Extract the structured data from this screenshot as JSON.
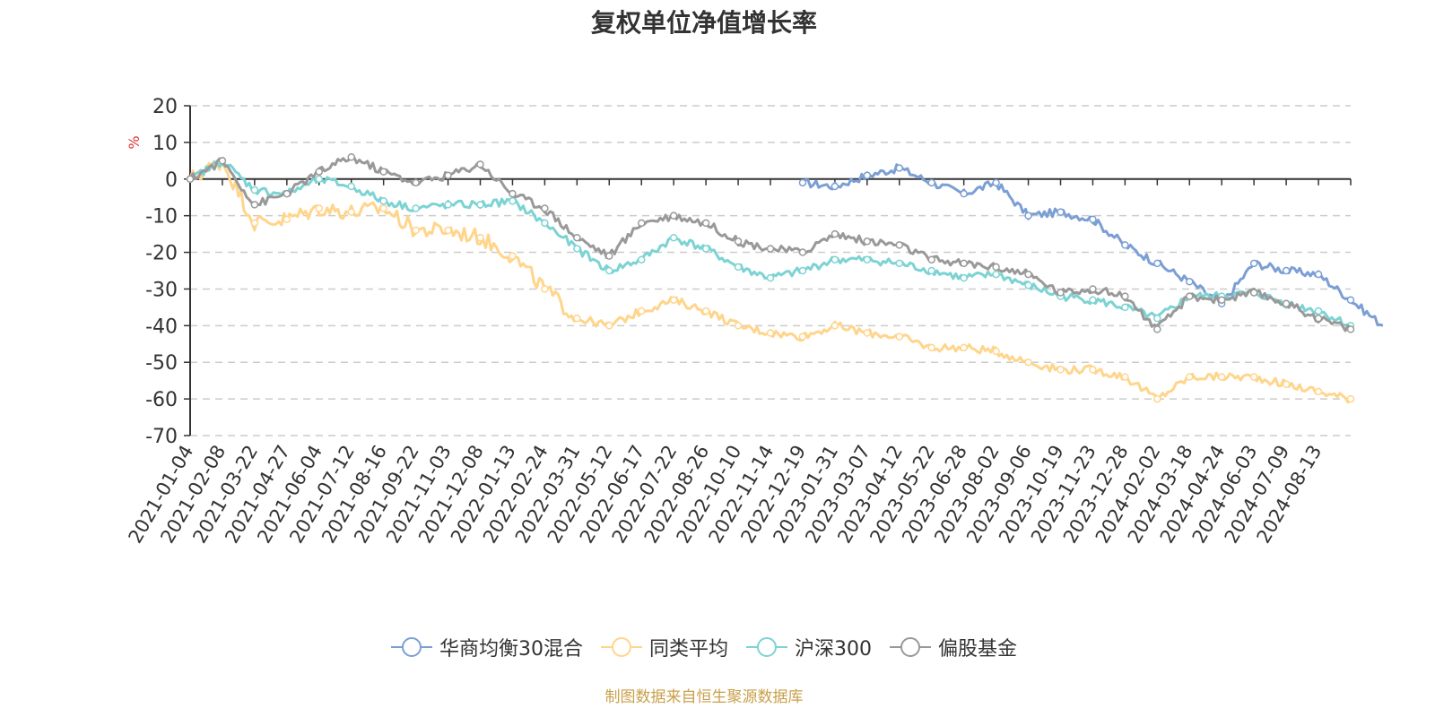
{
  "chart_data": {
    "type": "line",
    "title": "复权单位净值增长率",
    "ylabel": "%",
    "ylim": [
      -70,
      20
    ],
    "yticks": [
      20,
      10,
      0,
      -10,
      -20,
      -30,
      -40,
      -50,
      -60,
      -70
    ],
    "x_tick_labels": [
      "2021-01-04",
      "2021-02-08",
      "2021-03-22",
      "2021-04-27",
      "2021-06-04",
      "2021-07-12",
      "2021-08-16",
      "2021-09-22",
      "2021-11-03",
      "2021-12-08",
      "2022-01-13",
      "2022-02-24",
      "2022-03-31",
      "2022-05-12",
      "2022-06-17",
      "2022-07-22",
      "2022-08-26",
      "2022-10-10",
      "2022-11-14",
      "2022-12-19",
      "2023-01-31",
      "2023-03-07",
      "2023-04-12",
      "2023-05-22",
      "2023-06-28",
      "2023-08-02",
      "2023-09-06",
      "2023-10-19",
      "2023-11-23",
      "2023-12-28",
      "2024-02-02",
      "2024-03-18",
      "2024-04-24",
      "2024-06-03",
      "2024-07-09",
      "2024-08-13"
    ],
    "series": [
      {
        "name": "华商均衡30混合",
        "color": "#7b9fd4",
        "start_index": 19,
        "values": [
          -1,
          -2,
          1,
          3,
          -1,
          -4,
          -1,
          -10,
          -9,
          -11,
          -18,
          -23,
          -28,
          -34,
          -23,
          -25,
          -26,
          -33,
          -40
        ]
      },
      {
        "name": "同类平均",
        "color": "#ffd58c",
        "start_index": 0,
        "values": [
          0,
          5,
          -12,
          -11,
          -8,
          -9,
          -8,
          -14,
          -14,
          -16,
          -21,
          -30,
          -38,
          -40,
          -36,
          -33,
          -36,
          -40,
          -42,
          -43,
          -40,
          -42,
          -43,
          -46,
          -46,
          -47,
          -50,
          -52,
          -52,
          -54,
          -60,
          -54,
          -54,
          -54,
          -56,
          -58,
          -60
        ]
      },
      {
        "name": "沪深300",
        "color": "#7dd3d3",
        "start_index": 0,
        "values": [
          0,
          5,
          -3,
          -4,
          0,
          -2,
          -6,
          -8,
          -7,
          -7,
          -6,
          -12,
          -19,
          -25,
          -22,
          -16,
          -19,
          -24,
          -27,
          -25,
          -22,
          -22,
          -23,
          -25,
          -27,
          -26,
          -29,
          -32,
          -33,
          -35,
          -38,
          -32,
          -32,
          -31,
          -34,
          -36,
          -40
        ]
      },
      {
        "name": "偏股基金",
        "color": "#999999",
        "start_index": 0,
        "values": [
          0,
          5,
          -7,
          -4,
          2,
          6,
          2,
          -1,
          1,
          4,
          -4,
          -8,
          -16,
          -21,
          -12,
          -10,
          -12,
          -17,
          -19,
          -20,
          -15,
          -17,
          -18,
          -22,
          -23,
          -24,
          -26,
          -31,
          -30,
          -32,
          -41,
          -32,
          -33,
          -31,
          -34,
          -38,
          -41
        ]
      }
    ],
    "source": "制图数据来自恒生聚源数据库"
  }
}
